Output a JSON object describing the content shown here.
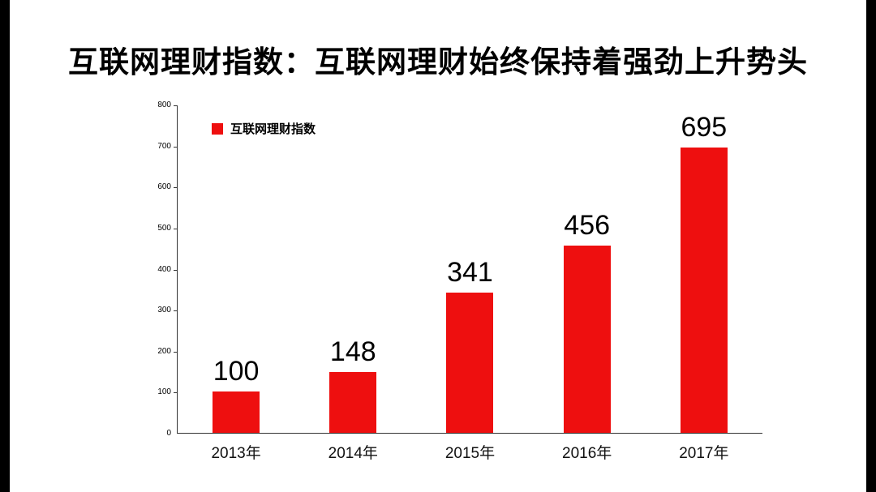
{
  "title": "互联网理财指数：互联网理财始终保持着强劲上升势头",
  "legend": {
    "label": "互联网理财指数",
    "swatch_color": "#ee0f0f"
  },
  "chart_data": {
    "type": "bar",
    "title": "",
    "xlabel": "",
    "ylabel": "",
    "categories": [
      "2013年",
      "2014年",
      "2015年",
      "2016年",
      "2017年"
    ],
    "series_name": "互联网理财指数",
    "values": [
      100,
      148,
      341,
      456,
      695
    ],
    "data_labels": [
      "100",
      "148",
      "341",
      "456",
      "695"
    ],
    "ylim": [
      0,
      800
    ],
    "yticks": [
      0,
      100,
      200,
      300,
      400,
      500,
      600,
      700,
      800
    ],
    "bar_color": "#ee0f0f",
    "axis_color": "#333333",
    "grid": false,
    "legend_position": "top-left"
  }
}
